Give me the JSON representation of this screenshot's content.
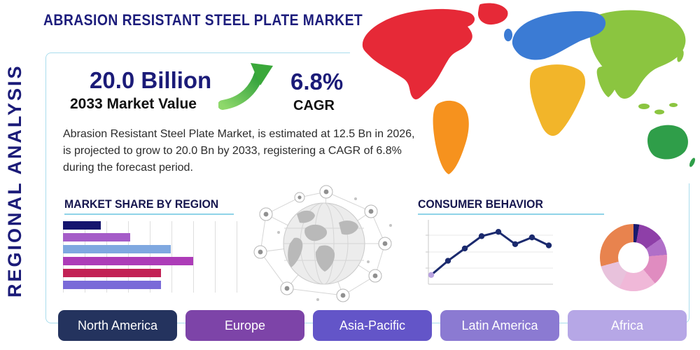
{
  "title": "ABRASION RESISTANT STEEL PLATE MARKET",
  "side_label": "REGIONAL ANALYSIS",
  "stats": {
    "market_value": "20.0 Billion",
    "market_value_caption": "2033 Market Value",
    "cagr_value": "6.8%",
    "cagr_caption": "CAGR"
  },
  "description": "Abrasion Resistant Steel Plate Market, is estimated at 12.5 Bn in 2026, is projected to grow to 20.0 Bn by 2033, registering a CAGR of 6.8% during the forecast period.",
  "section_headings": {
    "market_share": "MARKET SHARE BY REGION",
    "consumer_behavior": "CONSUMER BEHAVIOR"
  },
  "region_buttons": [
    {
      "label": "North America",
      "color": "#24335e"
    },
    {
      "label": "Europe",
      "color": "#7d44a8"
    },
    {
      "label": "Asia-Pacific",
      "color": "#6355c8"
    },
    {
      "label": "Latin America",
      "color": "#8b7ad2"
    },
    {
      "label": "Africa",
      "color": "#b6a7e6"
    }
  ],
  "accent_colors": {
    "navy": "#1b1b78",
    "teal_line": "#8fd3e8",
    "arrow_green_light": "#8ed86b",
    "arrow_green_dark": "#2d9e3a"
  },
  "map": {
    "regions": {
      "north_america": "#e62937",
      "greenland": "#e62937",
      "south_america": "#f6921e",
      "europe": "#3b7bd4",
      "africa": "#f2b52a",
      "asia": "#8bc540",
      "southeast_asia": "#8bc540",
      "australia": "#2f9e49"
    }
  },
  "chart_data": [
    {
      "type": "bar",
      "title": "MARKET SHARE BY REGION",
      "orientation": "horizontal",
      "categories": [
        "",
        "",
        "",
        "",
        "",
        ""
      ],
      "values": [
        22,
        39,
        63,
        76,
        57,
        57
      ],
      "xlim": [
        0,
        100
      ],
      "bar_colors": [
        "#15156e",
        "#a55cc8",
        "#7fa8e0",
        "#ad3cb8",
        "#c22255",
        "#7a6ad8"
      ],
      "grid": true
    },
    {
      "type": "line",
      "title": "CONSUMER BEHAVIOR",
      "x": [
        1,
        2,
        3,
        4,
        5,
        6,
        7,
        8
      ],
      "values": [
        15,
        38,
        58,
        78,
        85,
        65,
        76,
        63
      ],
      "ylim": [
        0,
        100
      ],
      "line_color": "#1b2a6e",
      "first_point_color": "#b9a3e0",
      "grid": true,
      "legend": []
    },
    {
      "type": "pie",
      "title": "",
      "donut": true,
      "segments": [
        {
          "color": "#1b1b6e",
          "deg": 10
        },
        {
          "color": "#8e3fa8",
          "deg": 45
        },
        {
          "color": "#b06fc8",
          "deg": 30
        },
        {
          "color": "#e08cc0",
          "deg": 55
        },
        {
          "color": "#f0b8d8",
          "deg": 65
        },
        {
          "color": "#e8c2dc",
          "deg": 50
        },
        {
          "color": "#e8834e",
          "deg": 105
        }
      ]
    }
  ]
}
